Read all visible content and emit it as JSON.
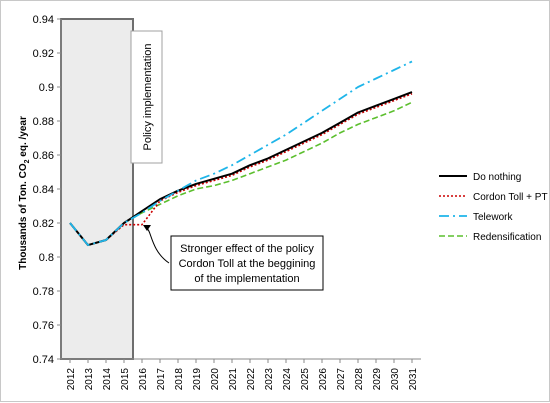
{
  "chart_data": {
    "type": "line",
    "title": "",
    "xlabel": "",
    "ylabel": "Thousands of Ton. CO2 eq. /year",
    "ylabel_parts": {
      "pre": "Thousands of Ton. CO",
      "sub": "2",
      "post": " eq. /year"
    },
    "ylim": [
      0.74,
      0.94
    ],
    "yticks": [
      0.74,
      0.76,
      0.78,
      0.8,
      0.82,
      0.84,
      0.86,
      0.88,
      0.9,
      0.92,
      0.94
    ],
    "ytick_labels": [
      "0.74",
      "0.76",
      "0.78",
      "0.8",
      "0.82",
      "0.84",
      "0.86",
      "0.88",
      "0.9",
      "0.92",
      "0.94"
    ],
    "x": [
      2012,
      2013,
      2014,
      2015,
      2016,
      2017,
      2018,
      2019,
      2020,
      2021,
      2022,
      2023,
      2024,
      2025,
      2026,
      2027,
      2028,
      2029,
      2030,
      2031
    ],
    "x_labels": [
      "2012",
      "2013",
      "2014",
      "2015",
      "2016",
      "2017",
      "2018",
      "2019",
      "2020",
      "2021",
      "2022",
      "2023",
      "2024",
      "2025",
      "2026",
      "2027",
      "2028",
      "2029",
      "2030",
      "2031"
    ],
    "grid": false,
    "legend_position": "right",
    "series": [
      {
        "name": "Do nothing",
        "color": "#000000",
        "style": "solid",
        "values": [
          0.82,
          0.807,
          0.81,
          0.82,
          0.827,
          0.834,
          0.839,
          0.843,
          0.846,
          0.849,
          0.854,
          0.858,
          0.863,
          0.868,
          0.873,
          0.879,
          0.885,
          0.889,
          0.893,
          0.897
        ]
      },
      {
        "name": "Cordon Toll + PT",
        "color": "#cc0000",
        "style": "dotted",
        "values": [
          0.82,
          0.807,
          0.81,
          0.819,
          0.819,
          0.833,
          0.838,
          0.842,
          0.845,
          0.848,
          0.853,
          0.857,
          0.862,
          0.867,
          0.872,
          0.878,
          0.884,
          0.888,
          0.892,
          0.896
        ]
      },
      {
        "name": "Telework",
        "color": "#1fb5e9",
        "style": "dashdot",
        "values": [
          0.82,
          0.807,
          0.81,
          0.82,
          0.826,
          0.833,
          0.839,
          0.845,
          0.849,
          0.854,
          0.86,
          0.866,
          0.872,
          0.879,
          0.886,
          0.893,
          0.9,
          0.905,
          0.91,
          0.915
        ]
      },
      {
        "name": "Redensification",
        "color": "#5cbf2e",
        "style": "dashed",
        "values": [
          0.82,
          0.807,
          0.81,
          0.82,
          0.826,
          0.831,
          0.836,
          0.84,
          0.842,
          0.845,
          0.849,
          0.853,
          0.857,
          0.862,
          0.867,
          0.873,
          0.878,
          0.882,
          0.886,
          0.891
        ]
      }
    ],
    "shaded_period": {
      "from": 2012,
      "to": 2015
    },
    "annotations": {
      "policy": "Policy implementation",
      "callout_lines": [
        "Stronger effect of the policy",
        "Cordon Toll at the beggining",
        "of the implementation"
      ]
    }
  }
}
